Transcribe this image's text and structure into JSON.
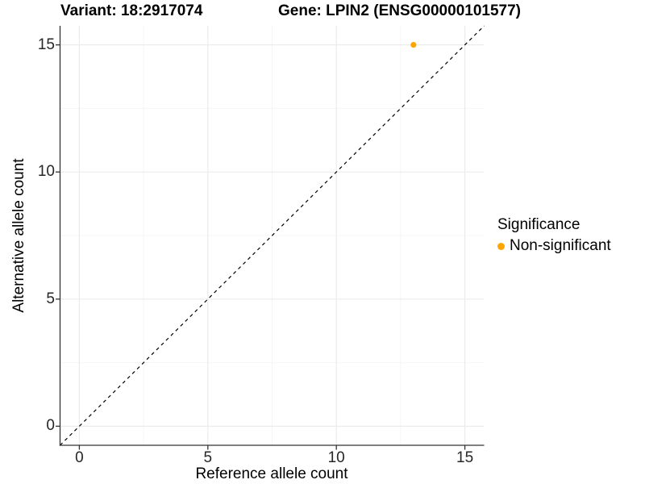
{
  "chart_data": {
    "type": "scatter",
    "title_left": "Variant: 18:2917074",
    "title_right": "Gene: LPIN2 (ENSG00000101577)",
    "xlabel": "Reference allele count",
    "ylabel": "Alternative allele count",
    "xlim": [
      -0.75,
      15.75
    ],
    "ylim": [
      -0.75,
      15.75
    ],
    "x_ticks": [
      0,
      5,
      10,
      15
    ],
    "y_ticks": [
      0,
      5,
      10,
      15
    ],
    "x_minor_ticks": [
      2.5,
      7.5,
      12.5
    ],
    "y_minor_ticks": [
      2.5,
      7.5,
      12.5
    ],
    "grid": true,
    "points": [
      {
        "x": 13,
        "y": 15,
        "series": "Non-significant"
      }
    ],
    "reference_line": {
      "type": "identity",
      "style": "dashed",
      "color": "#000000"
    },
    "legend": {
      "title": "Significance",
      "position": "right",
      "items": [
        {
          "label": "Non-significant",
          "color": "#FFA500"
        }
      ]
    },
    "colors": {
      "point_non_significant": "#FFA500",
      "grid_major": "#EBEBEB",
      "grid_minor": "#F5F5F5",
      "axis": "#333333",
      "tick_text": "#262626",
      "text": "#000000",
      "background": "#FFFFFF"
    }
  }
}
